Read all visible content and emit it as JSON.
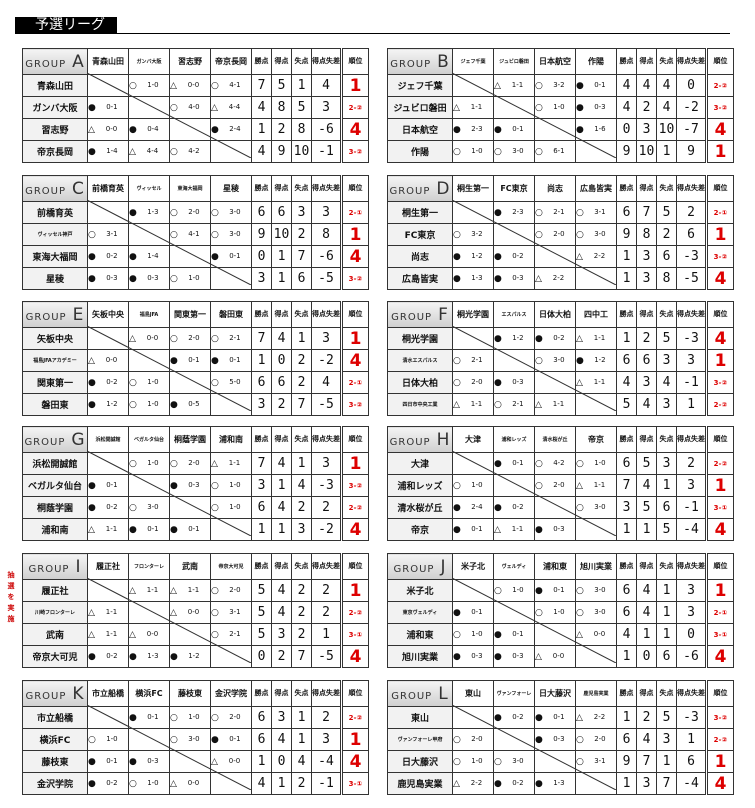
{
  "title": "予選リーグ",
  "group_label": "GROUP",
  "stat_headers": [
    "勝点",
    "得点",
    "失点",
    "得点失差",
    "順位"
  ],
  "colors": {
    "rank": "#dd0000",
    "note": "#cc0000"
  },
  "groups": [
    {
      "letter": "A",
      "headers": [
        "青森山田",
        "ガンバ大阪",
        "習志野",
        "帝京長岡"
      ],
      "teams": [
        "青森山田",
        "ガンバ大阪",
        "習志野",
        "帝京長岡"
      ],
      "results": [
        [
          "",
          "○1-0",
          "△0-0",
          "○4-1"
        ],
        [
          "●0-1",
          "",
          "○4-0",
          "△4-4"
        ],
        [
          "△0-0",
          "●0-4",
          "",
          "●2-4"
        ],
        [
          "●1-4",
          "△4-4",
          "○4-2",
          ""
        ]
      ],
      "stats": [
        [
          "7",
          "5",
          "1",
          "4",
          "1"
        ],
        [
          "4",
          "8",
          "5",
          "3",
          "2-②"
        ],
        [
          "1",
          "2",
          "8",
          "-6",
          "4"
        ],
        [
          "4",
          "9",
          "10",
          "-1",
          "3-②"
        ]
      ]
    },
    {
      "letter": "B",
      "headers": [
        "ジェフ千葉",
        "ジュビロ磐田",
        "日本航空",
        "作陽"
      ],
      "teams": [
        "ジェフ千葉",
        "ジュビロ磐田",
        "日本航空",
        "作陽"
      ],
      "results": [
        [
          "",
          "△1-1",
          "○3-2",
          "●0-1"
        ],
        [
          "△1-1",
          "",
          "○1-0",
          "●0-3"
        ],
        [
          "●2-3",
          "●0-1",
          "",
          "●1-6"
        ],
        [
          "○1-0",
          "○3-0",
          "○6-1",
          ""
        ]
      ],
      "stats": [
        [
          "4",
          "4",
          "4",
          "0",
          "2-②"
        ],
        [
          "4",
          "2",
          "4",
          "-2",
          "3-②"
        ],
        [
          "0",
          "3",
          "10",
          "-7",
          "4"
        ],
        [
          "9",
          "10",
          "1",
          "9",
          "1"
        ]
      ]
    },
    {
      "letter": "C",
      "headers": [
        "前橋育英",
        "ヴィッセル",
        "東海大福岡",
        "星稜"
      ],
      "teams": [
        "前橋育英",
        "ヴィッセル神戸",
        "東海大福岡",
        "星稜"
      ],
      "results": [
        [
          "",
          "●1-3",
          "○2-0",
          "○3-0"
        ],
        [
          "○3-1",
          "",
          "○4-1",
          "○3-0"
        ],
        [
          "●0-2",
          "●1-4",
          "",
          "●0-1"
        ],
        [
          "●0-3",
          "●0-3",
          "○1-0",
          ""
        ]
      ],
      "stats": [
        [
          "6",
          "6",
          "3",
          "3",
          "2-①"
        ],
        [
          "9",
          "10",
          "2",
          "8",
          "1"
        ],
        [
          "0",
          "1",
          "7",
          "-6",
          "4"
        ],
        [
          "3",
          "1",
          "6",
          "-5",
          "3-②"
        ]
      ]
    },
    {
      "letter": "D",
      "headers": [
        "桐生第一",
        "FC東京",
        "尚志",
        "広島皆実"
      ],
      "teams": [
        "桐生第一",
        "FC東京",
        "尚志",
        "広島皆実"
      ],
      "results": [
        [
          "",
          "●2-3",
          "○2-1",
          "○3-1"
        ],
        [
          "○3-2",
          "",
          "○2-0",
          "○3-0"
        ],
        [
          "●1-2",
          "●0-2",
          "",
          "△2-2"
        ],
        [
          "●1-3",
          "●0-3",
          "△2-2",
          ""
        ]
      ],
      "stats": [
        [
          "6",
          "7",
          "5",
          "2",
          "2-①"
        ],
        [
          "9",
          "8",
          "2",
          "6",
          "1"
        ],
        [
          "1",
          "3",
          "6",
          "-3",
          "3-②"
        ],
        [
          "1",
          "3",
          "8",
          "-5",
          "4"
        ]
      ]
    },
    {
      "letter": "E",
      "headers": [
        "矢板中央",
        "福島JFA",
        "関東第一",
        "磐田東"
      ],
      "teams": [
        "矢板中央",
        "福島JFAアカデミー",
        "関東第一",
        "磐田東"
      ],
      "results": [
        [
          "",
          "△0-0",
          "○2-0",
          "○2-1"
        ],
        [
          "△0-0",
          "",
          "●0-1",
          "●0-1"
        ],
        [
          "●0-2",
          "○1-0",
          "",
          "○5-0"
        ],
        [
          "●1-2",
          "○1-0",
          "●0-5",
          ""
        ]
      ],
      "stats": [
        [
          "7",
          "4",
          "1",
          "3",
          "1"
        ],
        [
          "1",
          "0",
          "2",
          "-2",
          "4"
        ],
        [
          "6",
          "6",
          "2",
          "4",
          "2-①"
        ],
        [
          "3",
          "2",
          "7",
          "-5",
          "3-②"
        ]
      ]
    },
    {
      "letter": "F",
      "headers": [
        "桐光学園",
        "エスパルス",
        "日体大柏",
        "四中工"
      ],
      "teams": [
        "桐光学園",
        "清水エスパルス",
        "日体大柏",
        "四日市中央工業"
      ],
      "results": [
        [
          "",
          "●1-2",
          "●0-2",
          "△1-1"
        ],
        [
          "○2-1",
          "",
          "○3-0",
          "●1-2"
        ],
        [
          "○2-0",
          "●0-3",
          "",
          "△1-1"
        ],
        [
          "△1-1",
          "○2-1",
          "△1-1",
          ""
        ]
      ],
      "stats": [
        [
          "1",
          "2",
          "5",
          "-3",
          "4"
        ],
        [
          "6",
          "6",
          "3",
          "3",
          "1"
        ],
        [
          "4",
          "3",
          "4",
          "-1",
          "3-②"
        ],
        [
          "5",
          "4",
          "3",
          "1",
          "2-②"
        ]
      ]
    },
    {
      "letter": "G",
      "headers": [
        "浜松開誠館",
        "ベガルタ仙台",
        "桐蔭学園",
        "浦和南"
      ],
      "teams": [
        "浜松開誠館",
        "ベガルタ仙台",
        "桐蔭学園",
        "浦和南"
      ],
      "results": [
        [
          "",
          "○1-0",
          "○2-0",
          "△1-1"
        ],
        [
          "●0-1",
          "",
          "●0-3",
          "○1-0"
        ],
        [
          "●0-2",
          "○3-0",
          "",
          "○1-0"
        ],
        [
          "△1-1",
          "●0-1",
          "●0-1",
          ""
        ]
      ],
      "stats": [
        [
          "7",
          "4",
          "1",
          "3",
          "1"
        ],
        [
          "3",
          "1",
          "4",
          "-3",
          "3-②"
        ],
        [
          "6",
          "4",
          "2",
          "2",
          "2-②"
        ],
        [
          "1",
          "1",
          "3",
          "-2",
          "4"
        ]
      ]
    },
    {
      "letter": "H",
      "headers": [
        "大津",
        "浦和レッズ",
        "清水桜が丘",
        "帝京"
      ],
      "teams": [
        "大津",
        "浦和レッズ",
        "清水桜が丘",
        "帝京"
      ],
      "results": [
        [
          "",
          "●0-1",
          "○4-2",
          "○1-0"
        ],
        [
          "○1-0",
          "",
          "○2-0",
          "△1-1"
        ],
        [
          "●2-4",
          "●0-2",
          "",
          "○3-0"
        ],
        [
          "●0-1",
          "△1-1",
          "●0-3",
          ""
        ]
      ],
      "stats": [
        [
          "6",
          "5",
          "3",
          "2",
          "2-②"
        ],
        [
          "7",
          "4",
          "1",
          "3",
          "1"
        ],
        [
          "3",
          "5",
          "6",
          "-1",
          "3-①"
        ],
        [
          "1",
          "1",
          "5",
          "-4",
          "4"
        ]
      ]
    },
    {
      "letter": "I",
      "headers": [
        "履正社",
        "フロンターレ",
        "武南",
        "帝京大可児"
      ],
      "teams": [
        "履正社",
        "川崎フロンターレ",
        "武南",
        "帝京大可児"
      ],
      "results": [
        [
          "",
          "△1-1",
          "△1-1",
          "○2-0"
        ],
        [
          "△1-1",
          "",
          "△0-0",
          "○3-1"
        ],
        [
          "△1-1",
          "△0-0",
          "",
          "○2-1"
        ],
        [
          "●0-2",
          "●1-3",
          "●1-2",
          ""
        ]
      ],
      "stats": [
        [
          "5",
          "4",
          "2",
          "2",
          "1"
        ],
        [
          "5",
          "4",
          "2",
          "2",
          "2-②"
        ],
        [
          "5",
          "3",
          "2",
          "1",
          "3-①"
        ],
        [
          "0",
          "2",
          "7",
          "-5",
          "4"
        ]
      ],
      "note": "抽選を実施"
    },
    {
      "letter": "J",
      "headers": [
        "米子北",
        "ヴェルディ",
        "浦和東",
        "旭川実業"
      ],
      "teams": [
        "米子北",
        "東京ヴェルディ",
        "浦和東",
        "旭川実業"
      ],
      "results": [
        [
          "",
          "○1-0",
          "●0-1",
          "○3-0"
        ],
        [
          "●0-1",
          "",
          "○1-0",
          "○3-0"
        ],
        [
          "○1-0",
          "●0-1",
          "",
          "△0-0"
        ],
        [
          "●0-3",
          "●0-3",
          "△0-0",
          ""
        ]
      ],
      "stats": [
        [
          "6",
          "4",
          "1",
          "3",
          "1"
        ],
        [
          "6",
          "4",
          "1",
          "3",
          "2-①"
        ],
        [
          "4",
          "1",
          "1",
          "0",
          "3-①"
        ],
        [
          "1",
          "0",
          "6",
          "-6",
          "4"
        ]
      ]
    },
    {
      "letter": "K",
      "headers": [
        "市立船橋",
        "横浜FC",
        "藤枝東",
        "金沢学院"
      ],
      "teams": [
        "市立船橋",
        "横浜FC",
        "藤枝東",
        "金沢学院"
      ],
      "results": [
        [
          "",
          "●0-1",
          "○1-0",
          "○2-0"
        ],
        [
          "○1-0",
          "",
          "○3-0",
          "●0-1"
        ],
        [
          "●0-1",
          "●0-3",
          "",
          "△0-0"
        ],
        [
          "●0-2",
          "○1-0",
          "△0-0",
          ""
        ]
      ],
      "stats": [
        [
          "6",
          "3",
          "1",
          "2",
          "2-②"
        ],
        [
          "6",
          "4",
          "1",
          "3",
          "1"
        ],
        [
          "1",
          "0",
          "4",
          "-4",
          "4"
        ],
        [
          "4",
          "1",
          "2",
          "-1",
          "3-①"
        ]
      ]
    },
    {
      "letter": "L",
      "headers": [
        "東山",
        "ヴァンフォーレ",
        "日大藤沢",
        "鹿児島実業"
      ],
      "teams": [
        "東山",
        "ヴァンフォーレ甲府",
        "日大藤沢",
        "鹿児島実業"
      ],
      "results": [
        [
          "",
          "●0-2",
          "●0-1",
          "△2-2"
        ],
        [
          "○2-0",
          "",
          "●0-3",
          "○2-0"
        ],
        [
          "○1-0",
          "○3-0",
          "",
          "○3-1"
        ],
        [
          "△2-2",
          "●0-2",
          "●1-3",
          ""
        ]
      ],
      "stats": [
        [
          "1",
          "2",
          "5",
          "-3",
          "3-②"
        ],
        [
          "6",
          "4",
          "3",
          "1",
          "2-②"
        ],
        [
          "9",
          "7",
          "1",
          "6",
          "1"
        ],
        [
          "1",
          "3",
          "7",
          "-4",
          "4"
        ]
      ]
    }
  ]
}
